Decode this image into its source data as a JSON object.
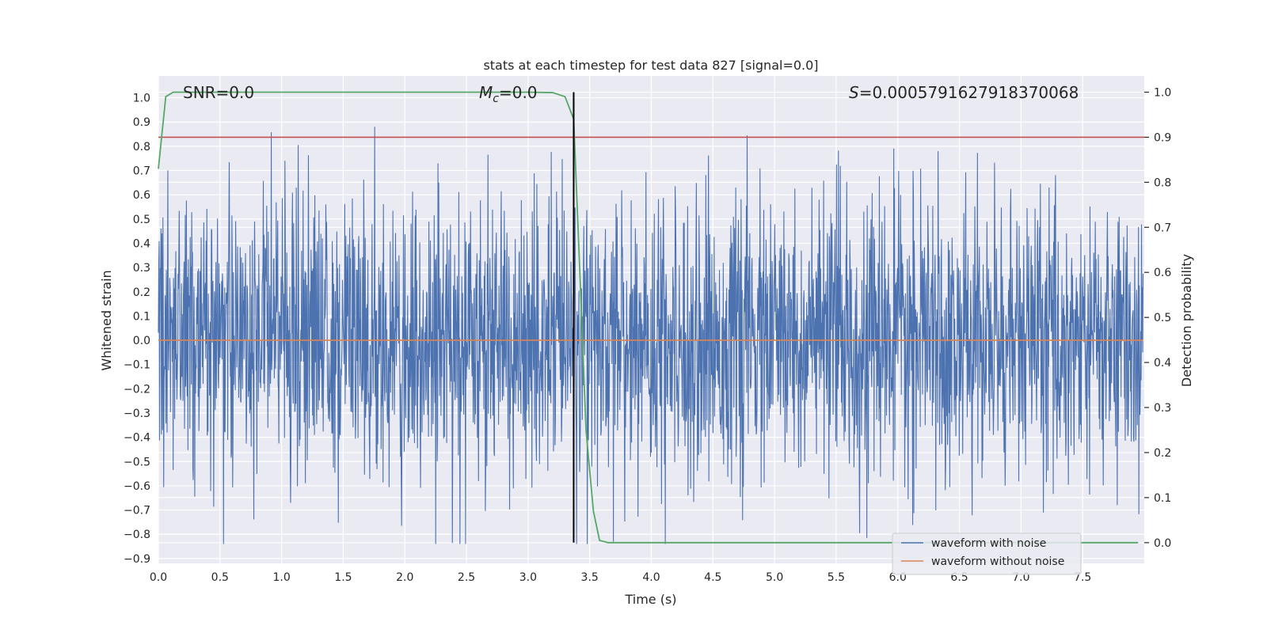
{
  "chart_data": {
    "type": "line",
    "title": "stats at each timestep for test data 827 [signal=0.0]",
    "xlabel": "Time (s)",
    "ylabel": "Whitened strain",
    "y2label": "Detection probability",
    "xlim": [
      0.0,
      8.0
    ],
    "ylim": [
      -0.92,
      1.09
    ],
    "y2lim": [
      -0.046,
      1.036
    ],
    "x_ticks": [
      0.0,
      0.5,
      1.0,
      1.5,
      2.0,
      2.5,
      3.0,
      3.5,
      4.0,
      4.5,
      5.0,
      5.5,
      6.0,
      6.5,
      7.0,
      7.5
    ],
    "y_ticks": [
      1.0,
      0.9,
      0.8,
      0.7,
      0.6,
      0.5,
      0.4,
      0.3,
      0.2,
      0.1,
      0.0,
      -0.1,
      -0.2,
      -0.3,
      -0.4,
      -0.5,
      -0.6,
      -0.7,
      -0.8,
      -0.9
    ],
    "y2_ticks": [
      1.0,
      0.9,
      0.8,
      0.7,
      0.6,
      0.5,
      0.4,
      0.3,
      0.2,
      0.1,
      0.0
    ],
    "grid": true,
    "legend_position": "lower-right",
    "annotations": {
      "snr": "SNR=0.0",
      "mc_symbol": "M",
      "mc_sub": "c",
      "mc_value": "=0.0",
      "s_symbol": "S",
      "s_value": "=0.0005791627918370068"
    },
    "series": [
      {
        "name": "waveform with noise",
        "color": "#4c72b0",
        "axis": "left",
        "kind": "noise",
        "envelope": [
          -0.84,
          1.0
        ]
      },
      {
        "name": "waveform without noise",
        "color": "#dd8452",
        "axis": "left",
        "x": [
          0.0,
          8.0
        ],
        "values": [
          0.0,
          0.0
        ]
      },
      {
        "color": "#55a868",
        "axis": "right",
        "x": [
          0.0,
          0.06,
          0.12,
          0.5,
          1.0,
          2.0,
          3.0,
          3.2,
          3.3,
          3.37,
          3.42,
          3.47,
          3.53,
          3.58,
          3.65,
          4.0,
          5.0,
          6.0,
          7.0,
          7.95
        ],
        "values": [
          0.83,
          0.99,
          1.0,
          1.0,
          1.0,
          1.0,
          1.0,
          0.999,
          0.99,
          0.94,
          0.6,
          0.25,
          0.07,
          0.005,
          0.0,
          0.0,
          0.0,
          0.0,
          0.0,
          0.0
        ]
      }
    ],
    "threshold_line": {
      "color": "#c44e52",
      "axis": "right",
      "value": 0.9
    },
    "detection_marker": {
      "color": "#000000",
      "x": 3.37
    }
  }
}
